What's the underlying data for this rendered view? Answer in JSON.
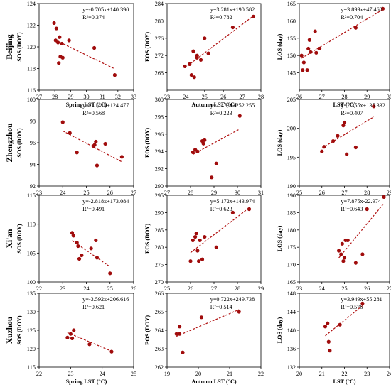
{
  "chart_data": [
    {
      "type": "scatter",
      "row": "Beijing",
      "ylabel": "SOS (DOY)",
      "xlabel": "Spring LST (°C)",
      "xlim": [
        27,
        33
      ],
      "ylim": [
        116,
        124
      ],
      "xticks": [
        27,
        28,
        29,
        30,
        31,
        32,
        33
      ],
      "yticks": [
        116,
        118,
        120,
        122,
        124
      ],
      "points": [
        [
          27.95,
          122.2
        ],
        [
          28.1,
          121.7
        ],
        [
          28.05,
          120.6
        ],
        [
          28.2,
          120.4
        ],
        [
          28.3,
          120.9
        ],
        [
          28.45,
          120.3
        ],
        [
          28.25,
          118.5
        ],
        [
          28.35,
          119.1
        ],
        [
          28.5,
          119.0
        ],
        [
          28.9,
          120.6
        ],
        [
          30.5,
          119.9
        ],
        [
          31.8,
          117.4
        ]
      ],
      "fit": {
        "slope": -0.705,
        "intercept": 140.39
      },
      "equation": "y=-0.705x+140.390",
      "r2": "R²=0.374"
    },
    {
      "type": "scatter",
      "row": "Beijing",
      "ylabel": "EOS (DOY)",
      "xlabel": "Autumn LST (°C)",
      "xlim": [
        23,
        28
      ],
      "ylim": [
        264,
        284
      ],
      "xticks": [
        23,
        24,
        25,
        26,
        27,
        28
      ],
      "yticks": [
        268,
        272,
        276,
        280,
        284
      ],
      "points": [
        [
          23.95,
          269.5
        ],
        [
          24.2,
          270.0
        ],
        [
          24.3,
          267.5
        ],
        [
          24.4,
          273.0
        ],
        [
          24.45,
          267.0
        ],
        [
          24.6,
          271.5
        ],
        [
          24.6,
          272.0
        ],
        [
          24.8,
          271.0
        ],
        [
          25.0,
          276.0
        ],
        [
          25.2,
          272.5
        ],
        [
          26.5,
          278.5
        ],
        [
          27.6,
          281.0
        ]
      ],
      "fit": {
        "slope": 3.281,
        "intercept": 190.582
      },
      "equation": "y=3.281x+190.582",
      "r2": "R²=0.782"
    },
    {
      "type": "scatter",
      "row": "Beijing",
      "ylabel": "LOS (day)",
      "xlabel": "LST (°C)",
      "xlim": [
        26,
        30
      ],
      "ylim": [
        140,
        165
      ],
      "xticks": [
        26,
        27,
        28,
        29,
        30
      ],
      "yticks": [
        145,
        150,
        155,
        160,
        165
      ],
      "points": [
        [
          26.1,
          150
        ],
        [
          26.15,
          145.8
        ],
        [
          26.2,
          148
        ],
        [
          26.35,
          145.8
        ],
        [
          26.4,
          152
        ],
        [
          26.45,
          154.5
        ],
        [
          26.5,
          151
        ],
        [
          26.7,
          157
        ],
        [
          26.75,
          150.8
        ],
        [
          26.9,
          152
        ],
        [
          28.5,
          158
        ],
        [
          29.7,
          163.5
        ]
      ],
      "fit": {
        "slope": 3.899,
        "intercept": 47.468
      },
      "equation": "y=3.899x+47.468",
      "r2": "R²=0.704"
    },
    {
      "type": "scatter",
      "row": "Zhengzhou",
      "ylabel": "SOS (DOY)",
      "xlabel": "",
      "xlim": [
        23,
        27
      ],
      "ylim": [
        92,
        100
      ],
      "xticks": [
        23,
        24,
        25,
        26,
        27
      ],
      "yticks": [
        92,
        94,
        96,
        98,
        100
      ],
      "points": [
        [
          24.0,
          97.9
        ],
        [
          24.3,
          96.9
        ],
        [
          24.6,
          95.1
        ],
        [
          25.3,
          95.7
        ],
        [
          25.35,
          95.8
        ],
        [
          25.4,
          96.1
        ],
        [
          25.45,
          93.9
        ],
        [
          25.8,
          95.9
        ],
        [
          26.5,
          94.7
        ]
      ],
      "fit": {
        "slope": -1.141,
        "intercept": 124.477
      },
      "equation": "y=-1.141x+124.477",
      "r2": "R²=0.568"
    },
    {
      "type": "scatter",
      "row": "Zhengzhou",
      "ylabel": "EOS (DOY)",
      "xlabel": "",
      "xlim": [
        27,
        31
      ],
      "ylim": [
        290,
        300
      ],
      "xticks": [
        27,
        28,
        29,
        30,
        31
      ],
      "yticks": [
        290,
        292,
        294,
        296,
        298,
        300
      ],
      "points": [
        [
          28.1,
          293.9
        ],
        [
          28.2,
          294.2
        ],
        [
          28.3,
          294.0
        ],
        [
          28.5,
          295.2
        ],
        [
          28.55,
          294.9
        ],
        [
          28.6,
          295.3
        ],
        [
          28.9,
          291.0
        ],
        [
          29.1,
          292.6
        ],
        [
          30.1,
          298.1
        ]
      ],
      "fit": {
        "slope": 1.473,
        "intercept": 252.255
      },
      "equation": "y=1.473x+252.255",
      "r2": "R²=0.223"
    },
    {
      "type": "scatter",
      "row": "Zhengzhou",
      "ylabel": "LOS (day)",
      "xlabel": "",
      "xlim": [
        25,
        29
      ],
      "ylim": [
        190,
        205
      ],
      "xticks": [
        25,
        26,
        27,
        28,
        29
      ],
      "yticks": [
        190,
        195,
        200,
        205
      ],
      "points": [
        [
          26.0,
          196.0
        ],
        [
          26.1,
          196.8
        ],
        [
          26.5,
          197.8
        ],
        [
          26.7,
          198.7
        ],
        [
          26.95,
          200.5
        ],
        [
          27.0,
          201.0
        ],
        [
          27.1,
          195.5
        ],
        [
          27.5,
          196.7
        ],
        [
          28.3,
          203.8
        ]
      ],
      "fit": {
        "slope": 2.355,
        "intercept": 135.332
      },
      "equation": "y=2.355x+135.332",
      "r2": "R²=0.407"
    },
    {
      "type": "scatter",
      "row": "Xi'an",
      "ylabel": "SOS (DOY)",
      "xlabel": "",
      "xlim": [
        22,
        26
      ],
      "ylim": [
        100,
        115
      ],
      "xticks": [
        22,
        23,
        24,
        25,
        26
      ],
      "yticks": [
        100,
        105,
        110,
        115
      ],
      "points": [
        [
          23.4,
          108.5
        ],
        [
          23.45,
          108.0
        ],
        [
          23.6,
          106.8
        ],
        [
          23.65,
          106.2
        ],
        [
          23.7,
          104.0
        ],
        [
          23.8,
          104.6
        ],
        [
          24.2,
          105.8
        ],
        [
          24.4,
          107.2
        ],
        [
          24.45,
          104.2
        ],
        [
          25.0,
          101.5
        ]
      ],
      "fit": {
        "slope": -2.818,
        "intercept": 173.084
      },
      "equation": "y=-2.818x+173.084",
      "r2": "R²=0.491"
    },
    {
      "type": "scatter",
      "row": "Xi'an",
      "ylabel": "EOS (DOY)",
      "xlabel": "",
      "xlim": [
        25,
        29
      ],
      "ylim": [
        270,
        295
      ],
      "xticks": [
        25,
        26,
        27,
        28,
        29
      ],
      "yticks": [
        270,
        275,
        280,
        285,
        290,
        295
      ],
      "points": [
        [
          26.0,
          276
        ],
        [
          26.1,
          282
        ],
        [
          26.2,
          283
        ],
        [
          26.25,
          284
        ],
        [
          26.3,
          279
        ],
        [
          26.35,
          276
        ],
        [
          26.4,
          282
        ],
        [
          26.5,
          276.5
        ],
        [
          26.6,
          283
        ],
        [
          27.1,
          280
        ],
        [
          27.8,
          290
        ],
        [
          28.5,
          291
        ]
      ],
      "fit": {
        "slope": 5.172,
        "intercept": 143.974
      },
      "equation": "y=5.172x+143.974",
      "r2": "R²=0.623"
    },
    {
      "type": "scatter",
      "row": "Xi'an",
      "ylabel": "LOS (day)",
      "xlabel": "",
      "xlim": [
        23,
        27
      ],
      "ylim": [
        165,
        190
      ],
      "xticks": [
        23,
        24,
        25,
        26,
        27
      ],
      "yticks": [
        165,
        170,
        175,
        180,
        185,
        190
      ],
      "points": [
        [
          24.75,
          174
        ],
        [
          24.85,
          173
        ],
        [
          24.9,
          176
        ],
        [
          24.95,
          171
        ],
        [
          25.0,
          172
        ],
        [
          25.05,
          177
        ],
        [
          25.15,
          177
        ],
        [
          25.5,
          170.5
        ],
        [
          25.8,
          173
        ],
        [
          26.0,
          186
        ],
        [
          26.75,
          189.5
        ]
      ],
      "fit": {
        "slope": 7.875,
        "intercept": -22.974
      },
      "equation": "y=7.875x-22.974",
      "r2": "R²=0.643"
    },
    {
      "type": "scatter",
      "row": "Xuzhou",
      "ylabel": "SOS (DOY)",
      "xlabel": "Spring LST (°C)",
      "xlim": [
        22,
        25
      ],
      "ylim": [
        115,
        135
      ],
      "xticks": [
        22,
        23,
        24,
        25
      ],
      "yticks": [
        115,
        120,
        125,
        130,
        135
      ],
      "points": [
        [
          22.9,
          123
        ],
        [
          23.0,
          124
        ],
        [
          23.05,
          122.8
        ],
        [
          23.1,
          125
        ],
        [
          23.6,
          121.2
        ],
        [
          24.3,
          119.2
        ]
      ],
      "fit": {
        "slope": -3.592,
        "intercept": 206.616
      },
      "equation": "y=-3.592x+206.616",
      "r2": "R²=0.621"
    },
    {
      "type": "scatter",
      "row": "Xuzhou",
      "ylabel": "EOS (DOY)",
      "xlabel": "Autumn LST (°C)",
      "xlim": [
        19,
        22
      ],
      "ylim": [
        262,
        266
      ],
      "xticks": [
        19,
        20,
        21,
        22
      ],
      "yticks": [
        262,
        263,
        264,
        265,
        266
      ],
      "points": [
        [
          19.3,
          263.8
        ],
        [
          19.4,
          263.8
        ],
        [
          19.4,
          264.2
        ],
        [
          19.5,
          262.8
        ],
        [
          20.1,
          264.7
        ],
        [
          21.3,
          265.0
        ]
      ],
      "fit": {
        "slope": 0.722,
        "intercept": 249.738
      },
      "equation": "y=0.722x+249.738",
      "r2": "R²=0.514"
    },
    {
      "type": "scatter",
      "row": "Xuzhou",
      "ylabel": "LOS (day)",
      "xlabel": "LST (°C)",
      "xlim": [
        20,
        24
      ],
      "ylim": [
        132,
        148
      ],
      "xticks": [
        20,
        21,
        22,
        23,
        24
      ],
      "yticks": [
        132,
        136,
        140,
        144,
        148
      ],
      "points": [
        [
          21.15,
          140.8
        ],
        [
          21.25,
          141.5
        ],
        [
          21.3,
          137.5
        ],
        [
          21.35,
          135.6
        ],
        [
          21.8,
          141.2
        ],
        [
          22.8,
          145.8
        ]
      ],
      "fit": {
        "slope": 3.949,
        "intercept": 55.281
      },
      "equation": "y=3.949x+55.281",
      "r2": "R²=0.576"
    }
  ]
}
